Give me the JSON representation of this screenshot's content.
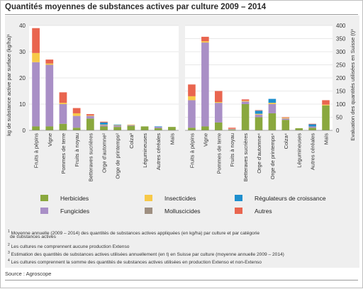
{
  "title": "Quantités moyennes de substances actives par culture 2009 – 2014",
  "chart_data": [
    {
      "type": "bar",
      "stacked": true,
      "ylabel": "kg de substance active par surface (kg/ha)¹",
      "ylim": [
        0,
        40
      ],
      "yticks": [
        0,
        10,
        20,
        30,
        40
      ],
      "grid": true,
      "categories": [
        "Fruits à pépins",
        "Vigne",
        "Pommes de terre",
        "Fruits à noyau",
        "Betteraves sucrières",
        "Orge d'automne²",
        "Orge de printemps²",
        "Colza²",
        "Légumineuses",
        "Autres céréales",
        "Maïs"
      ],
      "series": [
        {
          "name": "Herbicides",
          "values": [
            1.5,
            1.5,
            2.5,
            1.0,
            4.5,
            1.5,
            1.3,
            1.7,
            1.5,
            0.8,
            1.3
          ]
        },
        {
          "name": "Fungicides",
          "values": [
            24.5,
            23.5,
            7.5,
            4.5,
            1.0,
            0.5,
            0.5,
            0.3,
            0,
            0.5,
            0
          ]
        },
        {
          "name": "Molluscicides",
          "values": [
            0,
            0,
            0,
            0,
            0,
            0,
            0,
            0,
            0,
            0,
            0
          ]
        },
        {
          "name": "Insecticides",
          "values": [
            3.5,
            0.5,
            0.5,
            1.0,
            0.2,
            0.2,
            0.2,
            0.2,
            0,
            0,
            0
          ]
        },
        {
          "name": "Régulateurs de croissance",
          "values": [
            0,
            0,
            0,
            0,
            0,
            0.8,
            0.2,
            0,
            0,
            0.2,
            0
          ]
        },
        {
          "name": "Autres",
          "values": [
            9.5,
            1.5,
            4.0,
            2.0,
            0.5,
            0.3,
            0,
            0,
            0,
            0,
            0
          ]
        }
      ]
    },
    {
      "type": "bar",
      "stacked": true,
      "ylabel": "Evaluation des quantités utilisées en Suisse (t)³",
      "ylim": [
        0,
        400
      ],
      "yticks": [
        0,
        50,
        100,
        150,
        200,
        250,
        300,
        350,
        400
      ],
      "grid": true,
      "categories": [
        "Fruits à pépins",
        "Vigne",
        "Pommes de terre",
        "Fruits à noyau",
        "Betteraves sucrières",
        "Orge d'automne⁴",
        "Orge de printemps⁴",
        "Colza⁴",
        "Légumineuses",
        "Autres céréales",
        "Maïs"
      ],
      "series": [
        {
          "name": "Herbicides",
          "values": [
            10,
            15,
            30,
            3,
            100,
            50,
            65,
            40,
            8,
            10,
            95
          ]
        },
        {
          "name": "Fungicides",
          "values": [
            105,
            320,
            75,
            2,
            10,
            10,
            35,
            5,
            0,
            5,
            0
          ]
        },
        {
          "name": "Molluscicides",
          "values": [
            0,
            0,
            0,
            0,
            0,
            0,
            0,
            0,
            0,
            0,
            0
          ]
        },
        {
          "name": "Insecticides",
          "values": [
            15,
            5,
            3,
            1,
            3,
            3,
            5,
            3,
            0,
            0,
            3
          ]
        },
        {
          "name": "Régulateurs de croissance",
          "values": [
            0,
            0,
            0,
            0,
            0,
            12,
            15,
            0,
            0,
            8,
            0
          ]
        },
        {
          "name": "Autres",
          "values": [
            45,
            17,
            42,
            4,
            5,
            2,
            0,
            2,
            0,
            2,
            17
          ]
        }
      ]
    }
  ],
  "legend": [
    {
      "label": "Herbicides",
      "color": "#8aa83e"
    },
    {
      "label": "Insecticides",
      "color": "#f7c948"
    },
    {
      "label": "Régulateurs de croissance",
      "color": "#1e8fce"
    },
    {
      "label": "Fungicides",
      "color": "#a98fc6"
    },
    {
      "label": "Molluscicides",
      "color": "#9e8f81"
    },
    {
      "label": "Autres",
      "color": "#e9654f"
    }
  ],
  "footnotes": [
    {
      "num": "1",
      "text": "Moyenne annuelle (2009 – 2014) des quantités de substances actives appliquées (en kg/ha) par culture et par catégorie"
    },
    {
      "num": "",
      "text": "de substances actives"
    },
    {
      "num": "2",
      "text": "Les cultures ne comprennent aucune production Extenso"
    },
    {
      "num": "3",
      "text": "Estimation des quantités de substances actives utilisées annuellement (en t) en Suisse par culture (moyenne annuelle 2009 – 2014)"
    },
    {
      "num": "4",
      "text": "Les cultures comprennent la somme des quantités de substances actives utilisées en production Extenso et non-Extenso"
    }
  ],
  "source": "Source : Agroscope"
}
